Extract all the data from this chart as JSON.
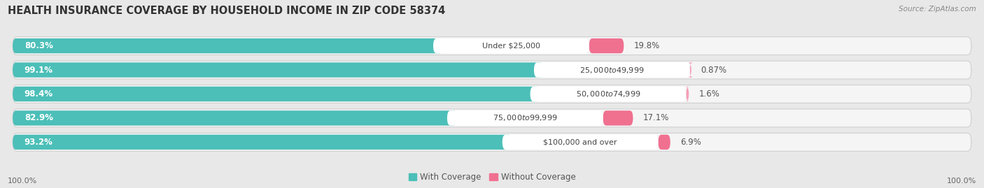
{
  "title": "HEALTH INSURANCE COVERAGE BY HOUSEHOLD INCOME IN ZIP CODE 58374",
  "source": "Source: ZipAtlas.com",
  "categories": [
    "Under $25,000",
    "$25,000 to $49,999",
    "$50,000 to $74,999",
    "$75,000 to $99,999",
    "$100,000 and over"
  ],
  "with_coverage": [
    80.3,
    99.1,
    98.4,
    82.9,
    93.2
  ],
  "without_coverage": [
    19.8,
    0.87,
    1.6,
    17.1,
    6.9
  ],
  "with_coverage_labels": [
    "80.3%",
    "99.1%",
    "98.4%",
    "82.9%",
    "93.2%"
  ],
  "without_coverage_labels": [
    "19.8%",
    "0.87%",
    "1.6%",
    "17.1%",
    "6.9%"
  ],
  "with_color": "#4BBFB8",
  "without_color": "#F07090",
  "without_color_light": "#F4A0B8",
  "label_color_with": "#ffffff",
  "bg_color": "#e8e8e8",
  "row_bg_color": "#f5f5f5",
  "row_border_color": "#d0d0d0",
  "label_box_color": "#ffffff",
  "text_dark": "#555555",
  "text_category": "#444444",
  "bottom_labels": [
    "100.0%",
    "100.0%"
  ],
  "legend_with": "With Coverage",
  "legend_without": "Without Coverage",
  "title_fontsize": 10.5,
  "label_fontsize": 8.5,
  "tick_fontsize": 8,
  "source_fontsize": 7.5
}
